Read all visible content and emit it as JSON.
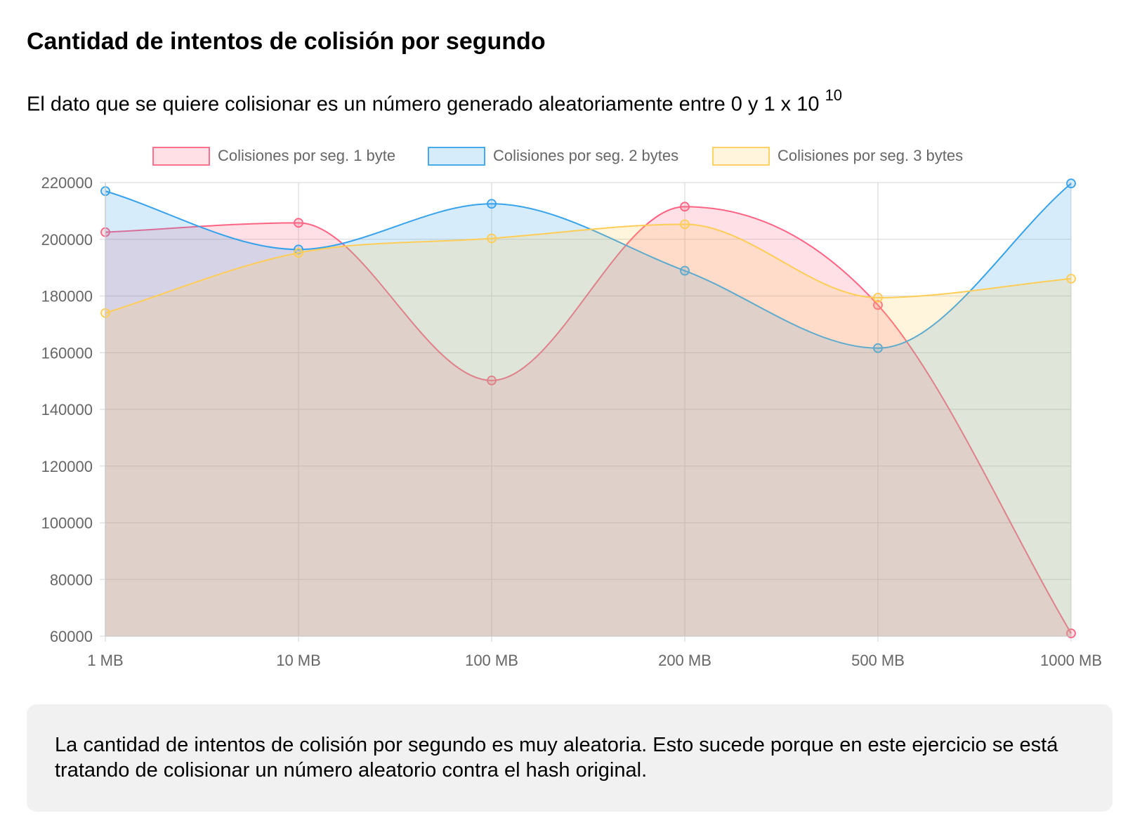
{
  "page": {
    "title": "Cantidad de intentos de colisión por segundo",
    "subtitle_text": "El dato que se quiere colisionar es un número generado aleatoriamente entre 0 y 1 x 10",
    "subtitle_exponent": "10",
    "note": "La cantidad de intentos de colisión por segundo es muy aleatoria. Esto sucede porque en este ejercicio se está tratando de colisionar un número aleatorio contra el hash original."
  },
  "chart_data": {
    "type": "area",
    "categories": [
      "1 MB",
      "10 MB",
      "100 MB",
      "200 MB",
      "500 MB",
      "1000 MB"
    ],
    "ylim": [
      60000,
      220000
    ],
    "yticks": [
      "220000",
      "200000",
      "180000",
      "160000",
      "140000",
      "120000",
      "100000",
      "80000",
      "60000"
    ],
    "grid": true,
    "legend_position": "top",
    "series": [
      {
        "name": "Colisiones por seg. 1 byte",
        "values": [
          202500,
          205800,
          150200,
          211500,
          176800,
          61000
        ],
        "stroke": "#ff6384",
        "fill": "rgba(255,99,132,0.2)"
      },
      {
        "name": "Colisiones por seg. 2 bytes",
        "values": [
          217000,
          196400,
          212500,
          188900,
          161600,
          219700
        ],
        "stroke": "#36a2eb",
        "fill": "rgba(54,162,235,0.2)"
      },
      {
        "name": "Colisiones por seg. 3 bytes",
        "values": [
          174000,
          195200,
          200300,
          205300,
          179400,
          186100
        ],
        "stroke": "#ffcd56",
        "fill": "rgba(255,205,86,0.2)"
      }
    ]
  }
}
